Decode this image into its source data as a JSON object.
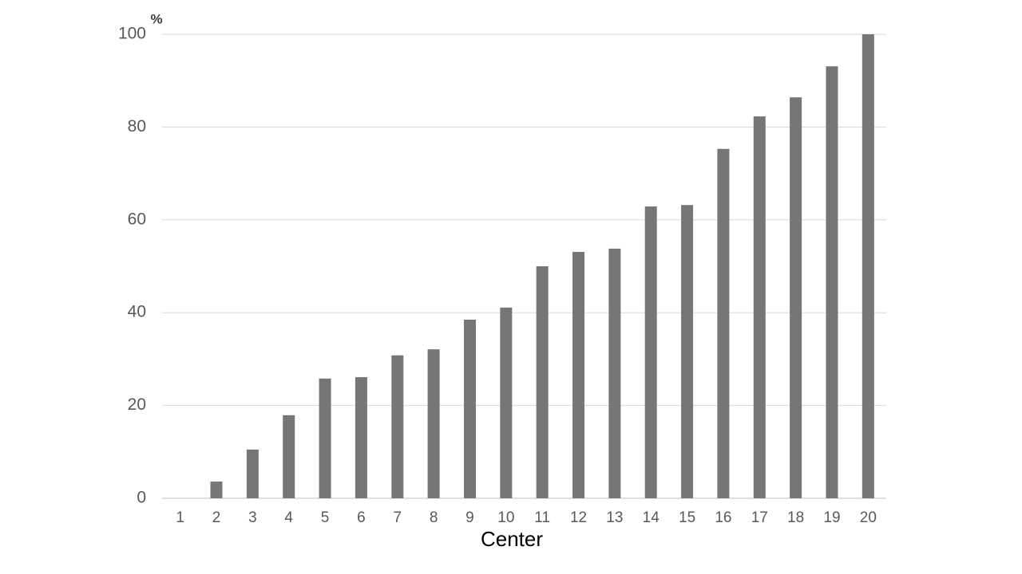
{
  "chart_data": {
    "type": "bar",
    "ylabel": "%",
    "xlabel": "Center",
    "categories": [
      "1",
      "2",
      "3",
      "4",
      "5",
      "6",
      "7",
      "8",
      "9",
      "10",
      "11",
      "12",
      "13",
      "14",
      "15",
      "16",
      "17",
      "18",
      "19",
      "20"
    ],
    "values": [
      0,
      3.6,
      10.5,
      17.9,
      25.8,
      26.1,
      30.8,
      32.1,
      38.5,
      41.1,
      50.0,
      53.1,
      53.8,
      62.9,
      63.2,
      75.3,
      82.3,
      86.4,
      93.1,
      100
    ],
    "color": "#767676",
    "ylim": [
      0,
      100
    ],
    "yticks": [
      0,
      20,
      40,
      60,
      80,
      100
    ],
    "grid": true
  }
}
